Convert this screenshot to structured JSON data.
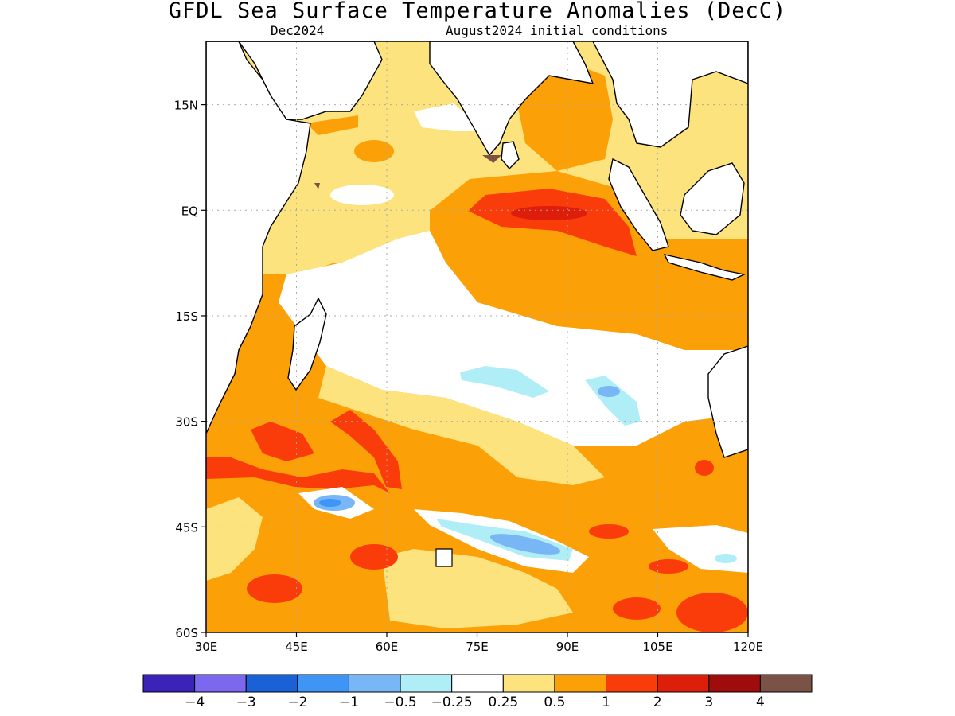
{
  "title": "GFDL Sea Surface Temperature Anomalies (DecC)",
  "subtitle_left": "Dec2024",
  "subtitle_right": "August2024 initial conditions",
  "map": {
    "lon_range": [
      30,
      120
    ],
    "lat_range": [
      -60,
      24
    ],
    "lon_ticks": [
      {
        "value": 30,
        "label": "30E"
      },
      {
        "value": 45,
        "label": "45E"
      },
      {
        "value": 60,
        "label": "60E"
      },
      {
        "value": 75,
        "label": "75E"
      },
      {
        "value": 90,
        "label": "90E"
      },
      {
        "value": 105,
        "label": "105E"
      },
      {
        "value": 120,
        "label": "120E"
      }
    ],
    "lat_ticks": [
      {
        "value": 15,
        "label": "15N"
      },
      {
        "value": 0,
        "label": "EQ"
      },
      {
        "value": -15,
        "label": "15S"
      },
      {
        "value": -30,
        "label": "30S"
      },
      {
        "value": -45,
        "label": "45S"
      },
      {
        "value": -60,
        "label": "60S"
      }
    ],
    "gridlines": "dotted"
  },
  "colorbar": {
    "colors": [
      "#3b22b8",
      "#7b68ee",
      "#1a60d6",
      "#3e95f5",
      "#78b6f5",
      "#b0eef7",
      "#ffffff",
      "#fde37d",
      "#fca008",
      "#fa3c0a",
      "#dc1e0a",
      "#a00c0c",
      "#7a5246"
    ],
    "labels": [
      "−4",
      "−3",
      "−2",
      "−1",
      "−0.5",
      "−0.25",
      "0.25",
      "0.5",
      "1",
      "2",
      "3",
      "4"
    ]
  },
  "colors": {
    "land": "#ffffff",
    "coastline": "#000000",
    "background": "#ffffff"
  }
}
